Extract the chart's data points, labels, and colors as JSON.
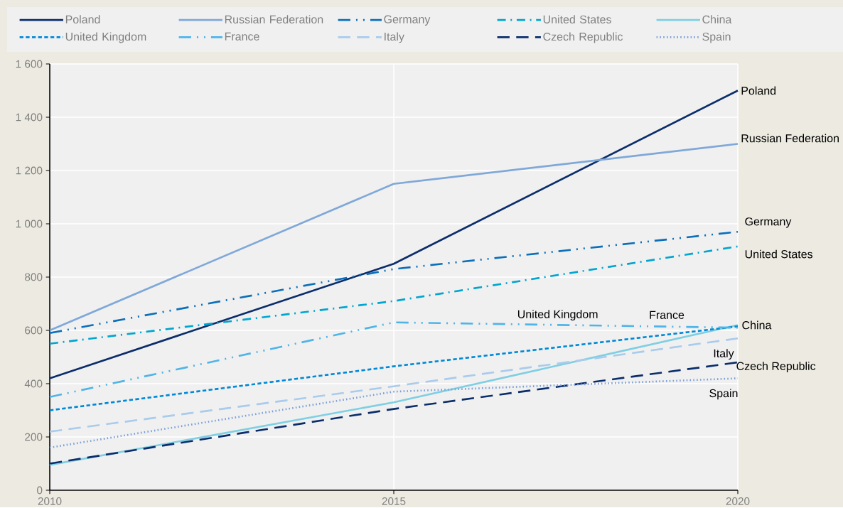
{
  "chart_data": {
    "type": "line",
    "x": [
      2010,
      2015,
      2020
    ],
    "xlim": [
      2010,
      2020
    ],
    "xticks": [
      2010,
      2015,
      2020
    ],
    "ylim": [
      0,
      1600
    ],
    "yticks": [
      0,
      {
        "value": 200,
        "label": "200"
      },
      {
        "value": 400,
        "label": "400"
      },
      {
        "value": 600,
        "label": "600"
      },
      {
        "value": 800,
        "label": "800"
      },
      {
        "value": 1000,
        "label": "1 000"
      },
      {
        "value": 1200,
        "label": "1 200"
      },
      {
        "value": 1400,
        "label": "1 400"
      },
      {
        "value": 1600,
        "label": "1 600"
      }
    ],
    "grid": true,
    "legend": "top",
    "marker": "none",
    "series": [
      {
        "name": "Poland",
        "color": "#0b2e6b",
        "line_style": "solid",
        "values": [
          420,
          850,
          1500
        ]
      },
      {
        "name": "Russian Federation",
        "color": "#7fa8d9",
        "line_style": "solid",
        "values": [
          600,
          1150,
          1300
        ]
      },
      {
        "name": "Germany",
        "color": "#0b6fba",
        "line_style": "dashdotdot",
        "values": [
          590,
          830,
          970
        ]
      },
      {
        "name": "United States",
        "color": "#00a6cf",
        "line_style": "dashdot",
        "values": [
          550,
          710,
          915
        ]
      },
      {
        "name": "China",
        "color": "#7fcfe3",
        "line_style": "solid",
        "values": [
          95,
          330,
          620
        ]
      },
      {
        "name": "United Kingdom",
        "color": "#0089d6",
        "line_style": "dashed",
        "values": [
          300,
          465,
          615
        ]
      },
      {
        "name": "France",
        "color": "#4fb4e8",
        "line_style": "dashdotdot",
        "values": [
          350,
          630,
          610
        ]
      },
      {
        "name": "Italy",
        "color": "#a9cbec",
        "line_style": "longdash",
        "values": [
          220,
          390,
          570
        ]
      },
      {
        "name": "Czech Republic",
        "color": "#0b2e6b",
        "line_style": "longdash",
        "values": [
          100,
          305,
          480
        ]
      },
      {
        "name": "Spain",
        "color": "#7b9fd8",
        "line_style": "dotted",
        "values": [
          160,
          370,
          420
        ]
      }
    ]
  }
}
